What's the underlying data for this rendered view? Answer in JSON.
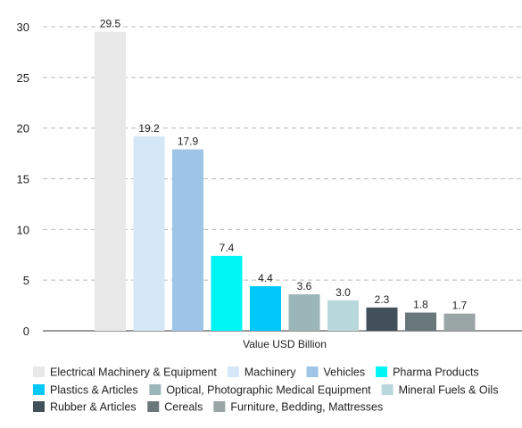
{
  "chart_data": {
    "type": "bar",
    "xlabel": "Value USD Billion",
    "ylabel": "",
    "ylim": [
      0,
      30
    ],
    "yticks": [
      0,
      5,
      10,
      15,
      20,
      25,
      30
    ],
    "grid": "horizontal dashed",
    "legend_position": "bottom",
    "categories": [
      "Electrical Machinery & Equipment",
      "Machinery",
      "Vehicles",
      "Pharma Products",
      "Plastics & Articles",
      "Optical, Photographic Medical Equipment",
      "Mineral Fuels & Oils",
      "Rubber & Articles",
      "Cereals",
      "Furniture, Bedding, Mattresses"
    ],
    "values": [
      29.5,
      19.2,
      17.9,
      7.4,
      4.4,
      3.6,
      3.0,
      2.3,
      1.8,
      1.7
    ],
    "value_labels": [
      "29.5",
      "19.2",
      "17.9",
      "7.4",
      "4.4",
      "3.6",
      "3.0",
      "2.3",
      "1.8",
      "1.7"
    ],
    "colors": [
      "#e8e8e8",
      "#d6e7f8",
      "#9ec5e8",
      "#00f5f5",
      "#00c8f8",
      "#9bb6b9",
      "#b9d8dc",
      "#425159",
      "#69777b",
      "#9aa5a6"
    ]
  }
}
